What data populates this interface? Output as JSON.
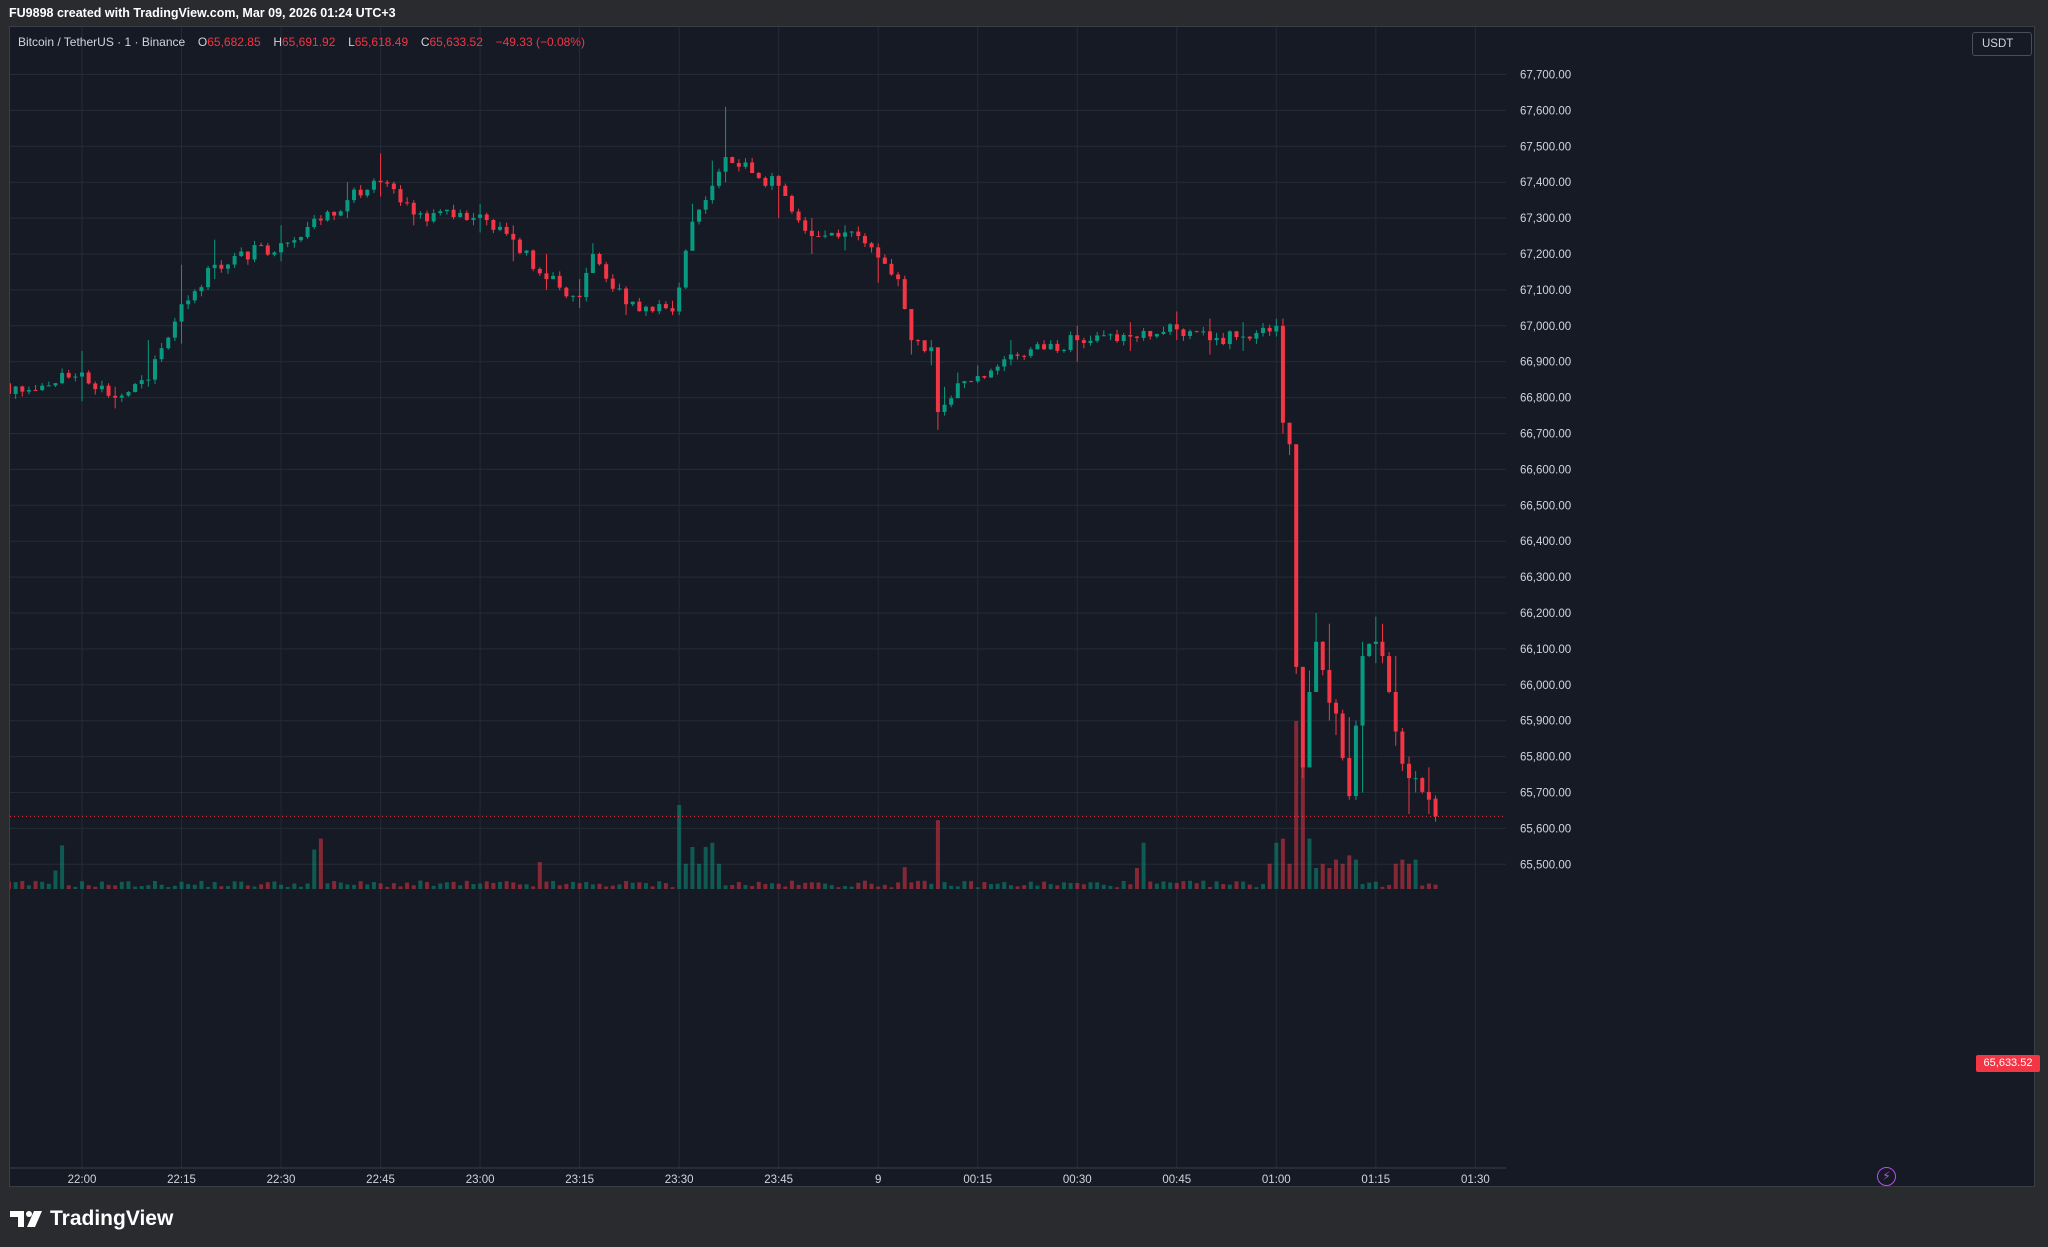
{
  "header": {
    "caption": "FU9898 created with TradingView.com, Mar 09, 2026 01:24 UTC+3"
  },
  "legend": {
    "symbol": "Bitcoin / TetherUS · 1 · Binance",
    "open_label": "O",
    "open_value": "65,682.85",
    "high_label": "H",
    "high_value": "65,691.92",
    "low_label": "L",
    "low_value": "65,618.49",
    "close_label": "C",
    "close_value": "65,633.52",
    "change": "−49.33 (−0.08%)"
  },
  "currency_badge": "USDT",
  "last_price_tag": "65,633.52",
  "brand": {
    "name": "TradingView",
    "logo_icon": "tradingview-logo-icon"
  },
  "colors": {
    "background": "#161a25",
    "bull": "#089981",
    "bear": "#f23645",
    "grid": "#252a36",
    "text": "#d1d4dc"
  },
  "chart_data": {
    "type": "candlestick",
    "title": "Bitcoin / TetherUS · 1 · Binance",
    "timeframe": "1 minute",
    "x_ticks": [
      "22:00",
      "22:15",
      "22:30",
      "22:45",
      "23:00",
      "23:15",
      "23:30",
      "23:45",
      "9",
      "00:15",
      "00:30",
      "00:45",
      "01:00",
      "01:15",
      "01:30"
    ],
    "y_ticks": [
      "65,500.00",
      "65,600.00",
      "65,700.00",
      "65,800.00",
      "65,900.00",
      "66,000.00",
      "66,100.00",
      "66,200.00",
      "66,300.00",
      "66,400.00",
      "66,500.00",
      "66,600.00",
      "66,700.00",
      "66,800.00",
      "66,900.00",
      "67,000.00",
      "67,100.00",
      "67,200.00",
      "67,300.00",
      "67,400.00",
      "67,500.00",
      "67,600.00",
      "67,700.00"
    ],
    "ylim": [
      65420,
      67850
    ],
    "last_price": 65633.52,
    "grid": true,
    "volume_pane": true,
    "anchors": [
      [
        "21:49",
        66810,
        66760,
        66830
      ],
      [
        "22:00",
        66870,
        66790,
        66930
      ],
      [
        "22:05",
        66800,
        66770,
        66830
      ],
      [
        "22:10",
        66850,
        66830,
        66960
      ],
      [
        "22:15",
        67060,
        66950,
        67170
      ],
      [
        "22:20",
        67170,
        67130,
        67240
      ],
      [
        "22:30",
        67230,
        67180,
        67280
      ],
      [
        "22:40",
        67350,
        67300,
        67400
      ],
      [
        "22:45",
        67400,
        67360,
        67480
      ],
      [
        "22:50",
        67310,
        67280,
        67350
      ],
      [
        "23:00",
        67310,
        67260,
        67340
      ],
      [
        "23:05",
        67240,
        67180,
        67280
      ],
      [
        "23:10",
        67130,
        67100,
        67200
      ],
      [
        "23:15",
        67080,
        67050,
        67130
      ],
      [
        "23:17",
        67200,
        67160,
        67230
      ],
      [
        "23:22",
        67060,
        67030,
        67110
      ],
      [
        "23:29",
        67040,
        67030,
        67070
      ],
      [
        "23:32",
        67290,
        67230,
        67340
      ],
      [
        "23:35",
        67390,
        67340,
        67460
      ],
      [
        "23:37",
        67470,
        67400,
        67610
      ],
      [
        "23:45",
        67390,
        67300,
        67420
      ],
      [
        "23:50",
        67250,
        67200,
        67300
      ],
      [
        "23:55",
        67260,
        67210,
        67280
      ],
      [
        "00:00",
        67190,
        67120,
        67230
      ],
      [
        "00:03",
        67130,
        67110,
        67150
      ],
      [
        "00:05",
        66960,
        66920,
        66990
      ],
      [
        "00:08",
        66940,
        66890,
        66960
      ],
      [
        "00:09",
        66760,
        66710,
        66880
      ],
      [
        "00:10",
        66780,
        66750,
        66830
      ],
      [
        "00:12",
        66840,
        66820,
        66870
      ],
      [
        "00:15",
        66860,
        66840,
        66890
      ],
      [
        "00:20",
        66920,
        66890,
        66960
      ],
      [
        "00:30",
        66960,
        66900,
        67000
      ],
      [
        "00:38",
        66970,
        66930,
        67010
      ],
      [
        "00:45",
        66990,
        66960,
        67040
      ],
      [
        "00:50",
        66960,
        66920,
        67020
      ],
      [
        "00:55",
        66970,
        66930,
        67010
      ],
      [
        "01:00",
        67000,
        66970,
        67020
      ],
      [
        "01:01",
        66730,
        66700,
        67020
      ],
      [
        "01:02",
        66670,
        66640,
        66730
      ],
      [
        "01:03",
        66050,
        66030,
        66670
      ],
      [
        "01:04",
        65770,
        65740,
        66050
      ],
      [
        "01:05",
        65980,
        65770,
        66040
      ],
      [
        "01:06",
        66120,
        65980,
        66200
      ],
      [
        "01:08",
        65950,
        65900,
        66170
      ],
      [
        "01:09",
        65920,
        65860,
        65960
      ],
      [
        "01:11",
        65690,
        65680,
        65910
      ],
      [
        "01:13",
        66080,
        65700,
        66120
      ],
      [
        "01:15",
        66120,
        66060,
        66190
      ],
      [
        "01:16",
        66080,
        66060,
        66170
      ],
      [
        "01:18",
        65870,
        65830,
        66080
      ],
      [
        "01:19",
        65780,
        65760,
        65880
      ],
      [
        "01:20",
        65740,
        65640,
        65800
      ],
      [
        "01:21",
        65740,
        65700,
        65760
      ],
      [
        "01:23",
        65680,
        65640,
        65770
      ],
      [
        "01:24",
        65633.52,
        65618.49,
        65691.92
      ]
    ],
    "volume_spikes": [
      [
        "21:56",
        0.22
      ],
      [
        "21:57",
        0.52
      ],
      [
        "22:35",
        0.47
      ],
      [
        "22:36",
        0.6
      ],
      [
        "23:09",
        0.32
      ],
      [
        "23:30",
        1.0
      ],
      [
        "23:31",
        0.3
      ],
      [
        "23:32",
        0.5
      ],
      [
        "23:33",
        0.3
      ],
      [
        "23:34",
        0.5
      ],
      [
        "23:35",
        0.55
      ],
      [
        "23:36",
        0.3
      ],
      [
        "00:04",
        0.26
      ],
      [
        "00:09",
        0.82
      ],
      [
        "00:39",
        0.25
      ],
      [
        "00:40",
        0.55
      ],
      [
        "00:59",
        0.3
      ],
      [
        "01:00",
        0.55
      ],
      [
        "01:01",
        0.6
      ],
      [
        "01:02",
        0.3
      ],
      [
        "01:03",
        2.0
      ],
      [
        "01:04",
        1.5
      ],
      [
        "01:05",
        0.6
      ],
      [
        "01:06",
        0.25
      ],
      [
        "01:07",
        0.3
      ],
      [
        "01:08",
        0.25
      ],
      [
        "01:09",
        0.35
      ],
      [
        "01:10",
        0.3
      ],
      [
        "01:11",
        0.4
      ],
      [
        "01:12",
        0.35
      ],
      [
        "01:18",
        0.3
      ],
      [
        "01:19",
        0.35
      ],
      [
        "01:20",
        0.3
      ],
      [
        "01:21",
        0.35
      ]
    ]
  }
}
